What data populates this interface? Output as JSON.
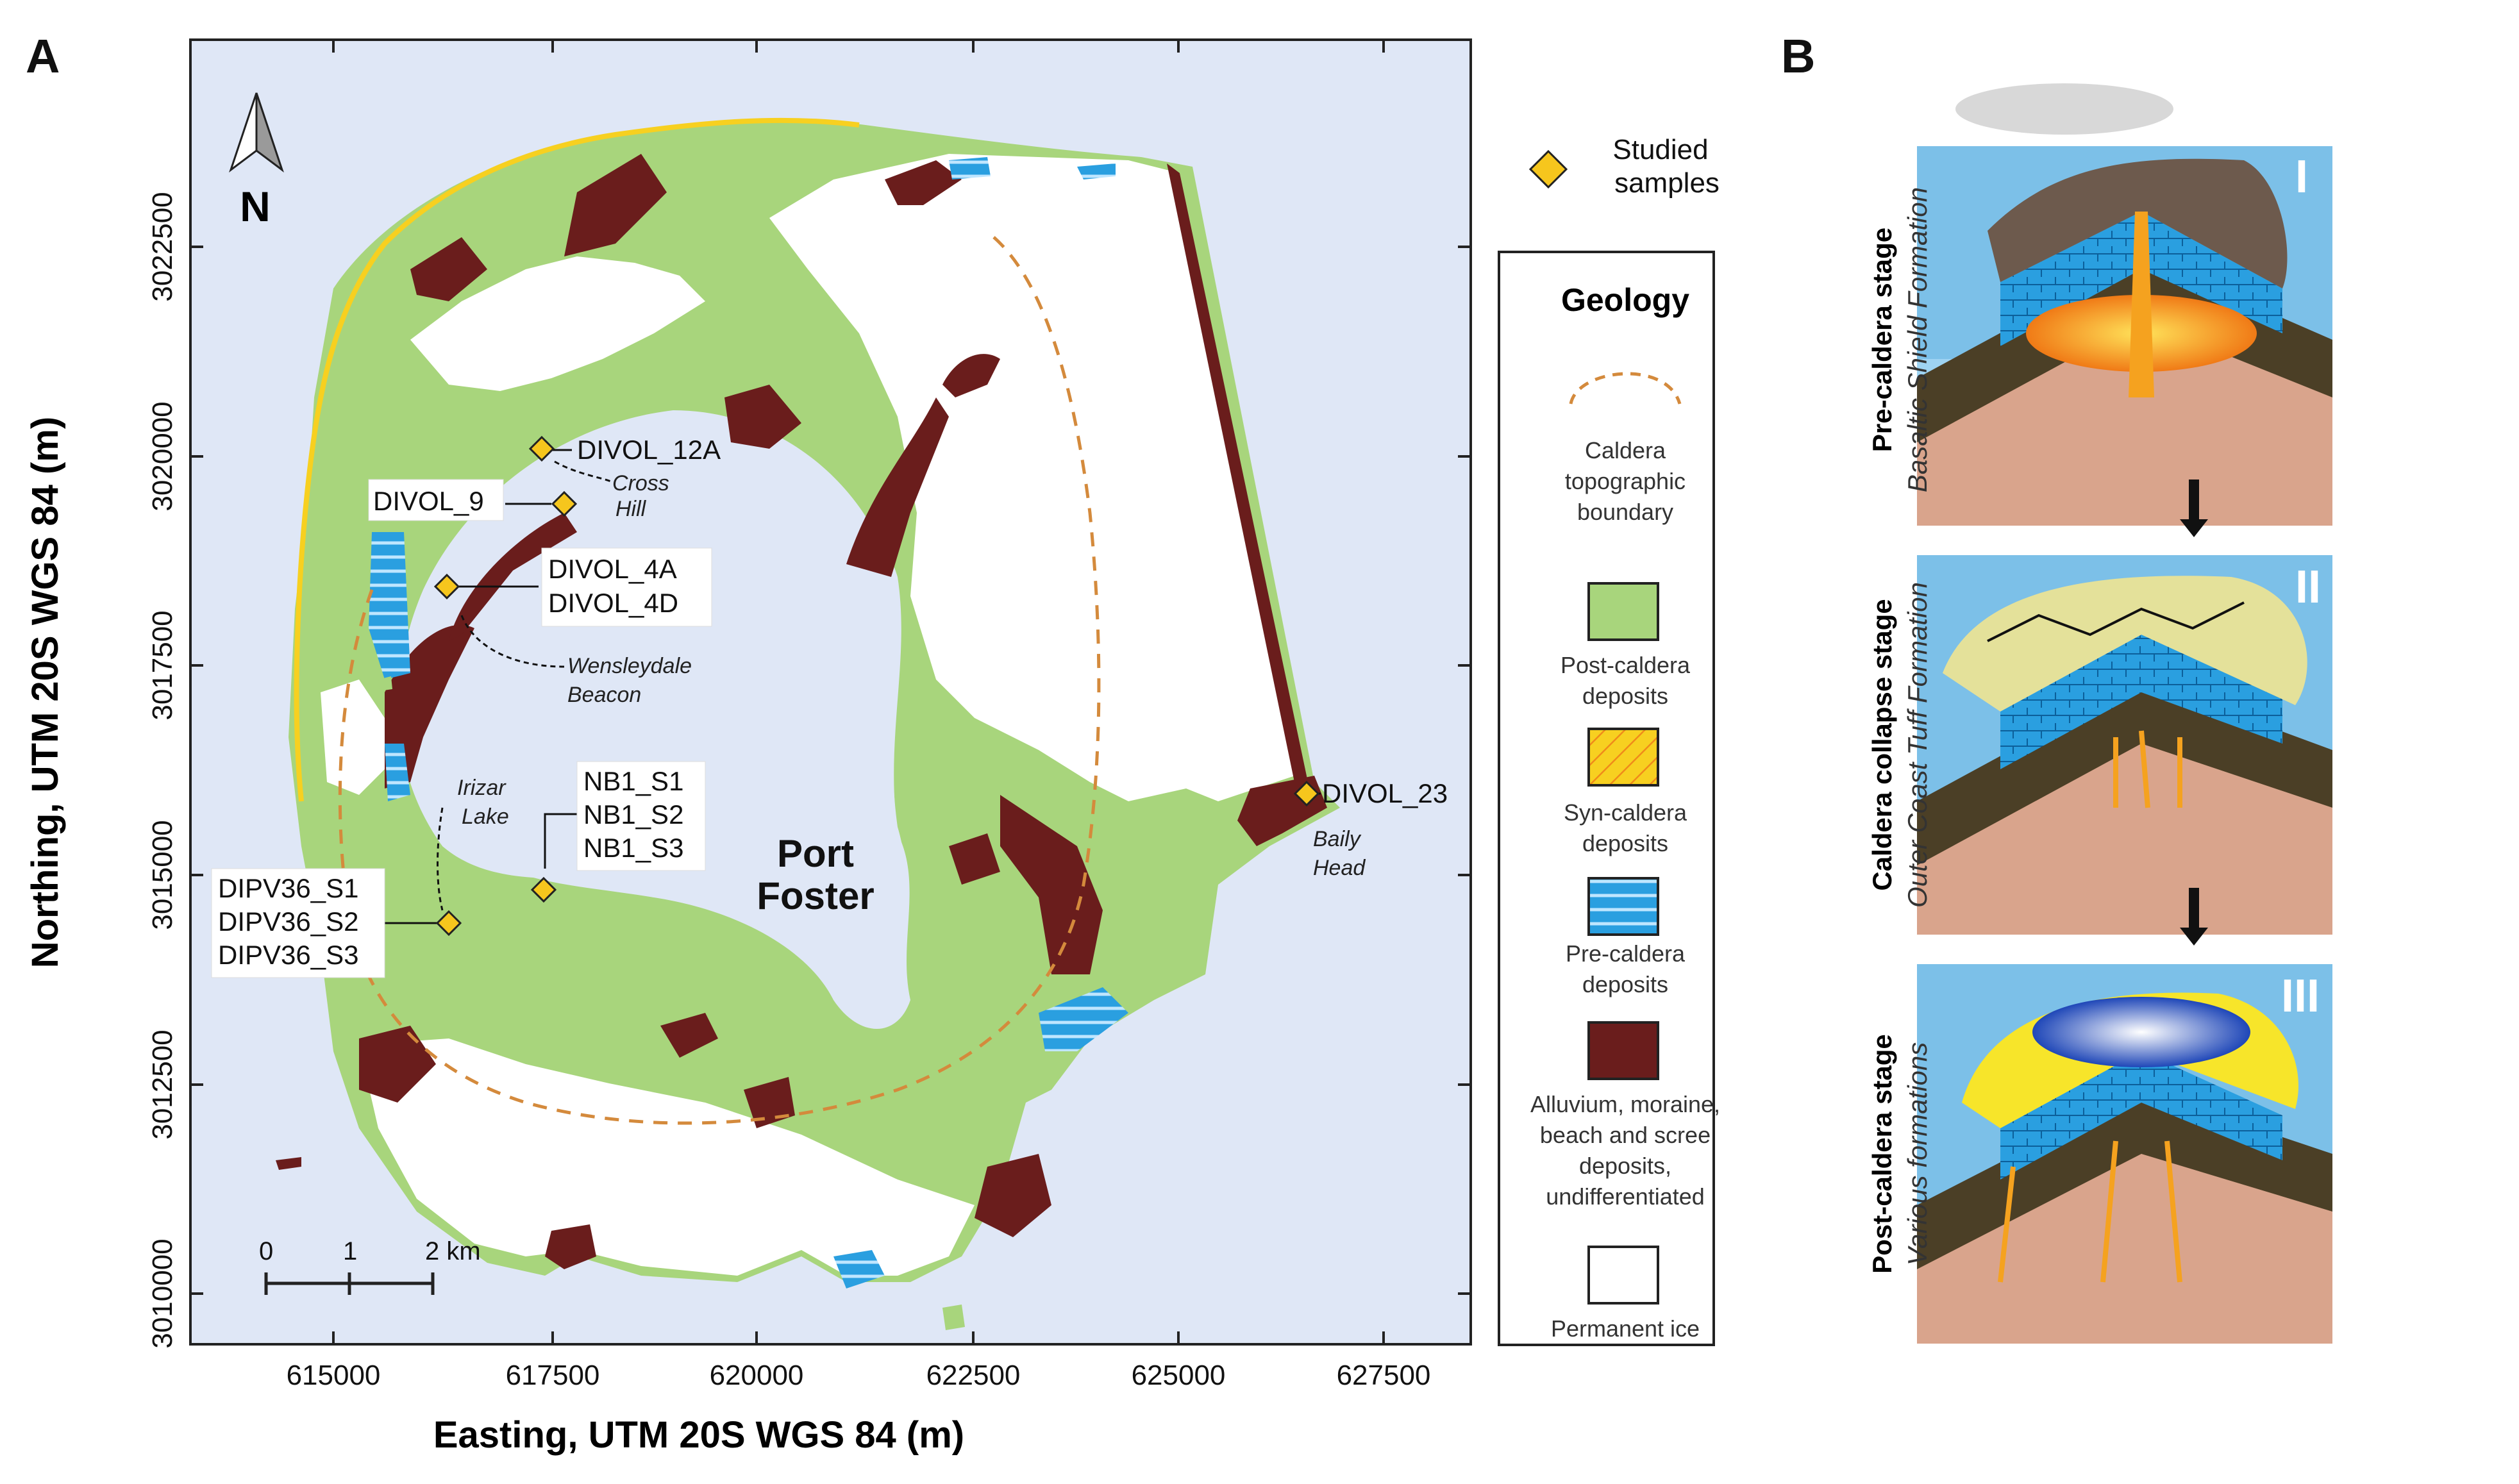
{
  "panel_a": {
    "letter": "A",
    "north_label": "N",
    "x_axis_label": "Easting, UTM 20S WGS 84 (m)",
    "y_axis_label": "Northing, UTM 20S WGS 84 (m)",
    "x_ticks": [
      "615000",
      "617500",
      "620000",
      "622500",
      "625000",
      "627500"
    ],
    "y_ticks": [
      "3022500",
      "3020000",
      "3017500",
      "3015000",
      "3012500",
      "3010000"
    ],
    "scale_bar": {
      "ticks": [
        "0",
        "1",
        "2 km"
      ]
    },
    "water_label_line1": "Port",
    "water_label_line2": "Foster",
    "place_names": {
      "cross_hill_line1": "Cross",
      "cross_hill_line2": "Hill",
      "wensleydale_line1": "Wensleydale",
      "wensleydale_line2": "Beacon",
      "irizar_line1": "Irizar",
      "irizar_line2": "Lake",
      "baily_line1": "Baily",
      "baily_line2": "Head"
    },
    "sample_labels": {
      "divol_12a": "DIVOL_12A",
      "divol_9": "DIVOL_9",
      "divol_4a": "DIVOL_4A",
      "divol_4d": "DIVOL_4D",
      "nb1_s1": "NB1_S1",
      "nb1_s2": "NB1_S2",
      "nb1_s3": "NB1_S3",
      "dipv36_s1": "DIPV36_S1",
      "dipv36_s2": "DIPV36_S2",
      "dipv36_s3": "DIPV36_S3",
      "divol_23": "DIVOL_23"
    },
    "legend": {
      "studied_line1": "Studied",
      "studied_line2": "samples",
      "title": "Geology",
      "caldera_line1": "Caldera",
      "caldera_line2": "topographic",
      "caldera_line3": "boundary",
      "post_line1": "Post-caldera",
      "post_line2": "deposits",
      "syn_line1": "Syn-caldera",
      "syn_line2": "deposits",
      "pre_line1": "Pre-caldera",
      "pre_line2": "deposits",
      "alluvium_line1": "Alluvium, moraine,",
      "alluvium_line2": "beach and scree",
      "alluvium_line3": "deposits,",
      "alluvium_line4": "undifferentiated",
      "ice": "Permanent ice"
    },
    "colors": {
      "sea": "#dfe7f6",
      "post_caldera": "#a8d57c",
      "syn_caldera": "#f7d020",
      "pre_caldera": "#2a9fe0",
      "alluvium": "#6a1d1c",
      "ice": "#ffffff",
      "caldera_boundary": "#d48a3c",
      "sample_marker": "#f6c61d"
    }
  },
  "panel_b": {
    "letter": "B",
    "stages": [
      {
        "numeral": "I",
        "title": "Pre-caldera stage",
        "subtitle": "Basaltic Shield Formation"
      },
      {
        "numeral": "II",
        "title": "Caldera collapse stage",
        "subtitle": "Outer Coast Tuff Formation"
      },
      {
        "numeral": "III",
        "title": "Post-caldera stage",
        "subtitle": "Various formations"
      }
    ]
  }
}
